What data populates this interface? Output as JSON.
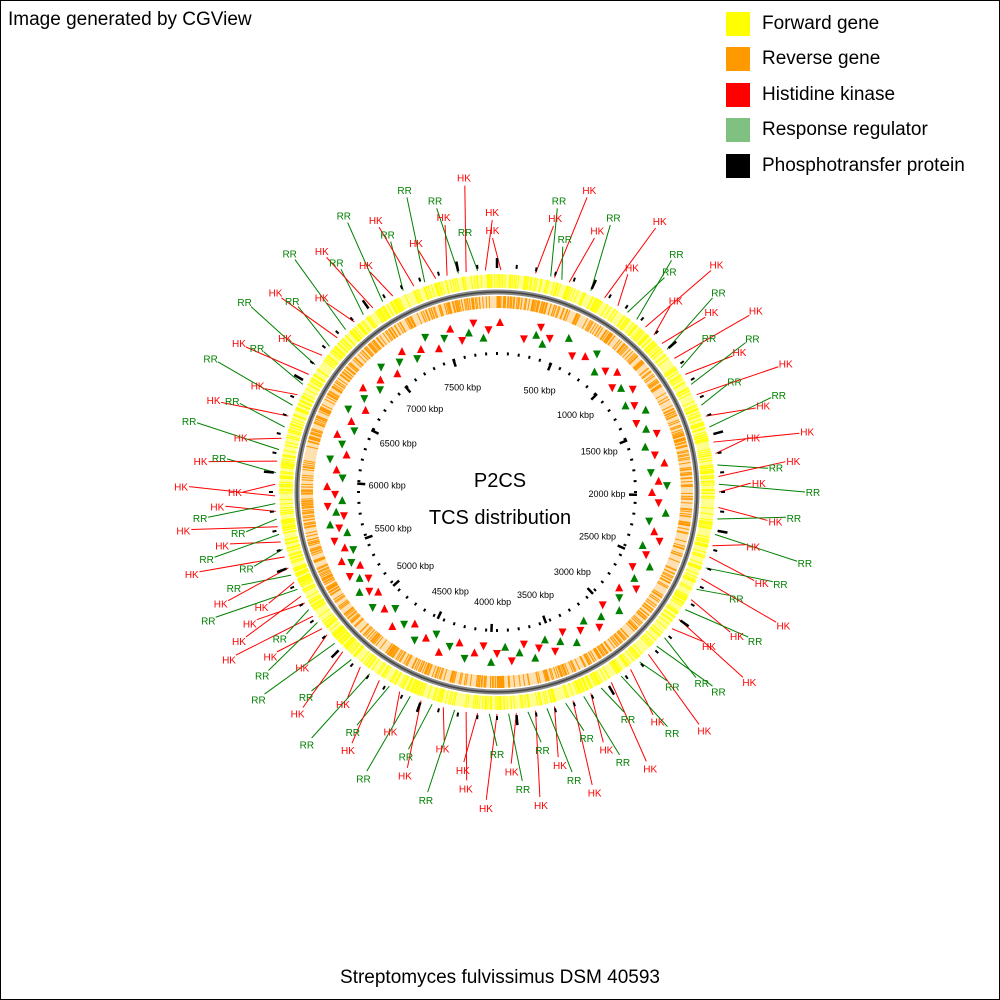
{
  "credit": "Image generated by CGView",
  "legend": [
    {
      "label": "Forward gene",
      "color": "#ffff00"
    },
    {
      "label": "Reverse gene",
      "color": "#ff9900"
    },
    {
      "label": "Histidine kinase",
      "color": "#ff0000"
    },
    {
      "label": "Response regulator",
      "color": "#80c080"
    },
    {
      "label": "Phosphotransfer protein",
      "color": "#000000"
    }
  ],
  "center_title": {
    "line1": "P2CS",
    "line2": "TCS distribution"
  },
  "organism": "Streptomyces fulvissimus DSM 40593",
  "label_colors": {
    "HK": "#ff0000",
    "RR": "#008000"
  },
  "ruler": {
    "genome_kbp": 7900,
    "tick_labels": [
      "500 kbp",
      "1000 kbp",
      "1500 kbp",
      "2000 kbp",
      "2500 kbp",
      "3000 kbp",
      "3500 kbp",
      "4000 kbp",
      "4500 kbp",
      "5000 kbp",
      "5500 kbp",
      "6000 kbp",
      "6500 kbp",
      "7000 kbp",
      "7500 kbp"
    ]
  },
  "features": [
    {
      "t": "HK",
      "a": 1
    },
    {
      "t": "HK",
      "a": 10
    },
    {
      "t": "RR",
      "a": 14
    },
    {
      "t": "HK",
      "a": 15
    },
    {
      "t": "RR",
      "a": 17
    },
    {
      "t": "HK",
      "a": 19
    },
    {
      "t": "RR",
      "a": 25
    },
    {
      "t": "HK",
      "a": 29
    },
    {
      "t": "HK",
      "a": 33
    },
    {
      "t": "RR",
      "a": 36
    },
    {
      "t": "RR",
      "a": 39
    },
    {
      "t": "HK",
      "a": 42
    },
    {
      "t": "HK",
      "a": 45
    },
    {
      "t": "HK",
      "a": 48
    },
    {
      "t": "RR",
      "a": 50
    },
    {
      "t": "HK",
      "a": 53
    },
    {
      "t": "RR",
      "a": 56
    },
    {
      "t": "HK",
      "a": 58
    },
    {
      "t": "RR",
      "a": 61
    },
    {
      "t": "HK",
      "a": 64
    },
    {
      "t": "RR",
      "a": 67
    },
    {
      "t": "HK",
      "a": 70
    },
    {
      "t": "RR",
      "a": 73
    },
    {
      "t": "HK",
      "a": 77
    },
    {
      "t": "HK",
      "a": 80
    },
    {
      "t": "RR",
      "a": 83
    },
    {
      "t": "HK",
      "a": 86
    },
    {
      "t": "RR",
      "a": 88
    },
    {
      "t": "HK",
      "a": 90
    },
    {
      "t": "HK",
      "a": 94
    },
    {
      "t": "RR",
      "a": 97
    },
    {
      "t": "RR",
      "a": 101
    },
    {
      "t": "HK",
      "a": 104
    },
    {
      "t": "HK",
      "a": 107
    },
    {
      "t": "RR",
      "a": 110
    },
    {
      "t": "HK",
      "a": 113
    },
    {
      "t": "RR",
      "a": 116
    },
    {
      "t": "HK",
      "a": 119
    },
    {
      "t": "RR",
      "a": 122
    },
    {
      "t": "HK",
      "a": 125
    },
    {
      "t": "HK",
      "a": 128
    },
    {
      "t": "RR",
      "a": 131
    },
    {
      "t": "RR",
      "a": 134
    },
    {
      "t": "HK",
      "a": 137
    },
    {
      "t": "RR",
      "a": 140
    },
    {
      "t": "HK",
      "a": 143
    },
    {
      "t": "RR",
      "a": 146
    },
    {
      "t": "HK",
      "a": 149
    },
    {
      "t": "RR",
      "a": 152
    },
    {
      "t": "HK",
      "a": 155
    },
    {
      "t": "RR",
      "a": 157
    },
    {
      "t": "HK",
      "a": 160
    },
    {
      "t": "RR",
      "a": 162
    },
    {
      "t": "HK",
      "a": 165
    },
    {
      "t": "RR",
      "a": 167
    },
    {
      "t": "HK",
      "a": 170
    },
    {
      "t": "RR",
      "a": 172
    },
    {
      "t": "HK",
      "a": 175
    },
    {
      "t": "RR",
      "a": 177
    },
    {
      "t": "HK",
      "a": 180
    },
    {
      "t": "RR",
      "a": 182
    },
    {
      "t": "HK",
      "a": 185
    },
    {
      "t": "HK",
      "a": 188
    },
    {
      "t": "RR",
      "a": 191
    },
    {
      "t": "HK",
      "a": 194
    },
    {
      "t": "RR",
      "a": 197
    },
    {
      "t": "HK",
      "a": 200
    },
    {
      "t": "RR",
      "a": 203
    },
    {
      "t": "HK",
      "a": 206
    },
    {
      "t": "RR",
      "a": 209
    },
    {
      "t": "HK",
      "a": 212
    },
    {
      "t": "RR",
      "a": 215
    },
    {
      "t": "HK",
      "a": 218
    },
    {
      "t": "RR",
      "a": 221
    },
    {
      "t": "HK",
      "a": 224
    },
    {
      "t": "RR",
      "a": 227
    },
    {
      "t": "HK",
      "a": 230
    },
    {
      "t": "HK",
      "a": 232
    },
    {
      "t": "RR",
      "a": 234
    },
    {
      "t": "HK",
      "a": 236
    },
    {
      "t": "RR",
      "a": 238
    },
    {
      "t": "HK",
      "a": 240
    },
    {
      "t": "HK",
      "a": 242
    },
    {
      "t": "RR",
      "a": 244
    },
    {
      "t": "HK",
      "a": 246
    },
    {
      "t": "RR",
      "a": 248
    },
    {
      "t": "HK",
      "a": 250
    },
    {
      "t": "HK",
      "a": 253
    },
    {
      "t": "RR",
      "a": 255
    },
    {
      "t": "HK",
      "a": 257
    },
    {
      "t": "RR",
      "a": 259
    },
    {
      "t": "HK",
      "a": 261
    },
    {
      "t": "RR",
      "a": 263
    },
    {
      "t": "HK",
      "a": 265
    },
    {
      "t": "RR",
      "a": 267
    },
    {
      "t": "HK",
      "a": 269
    },
    {
      "t": "HK",
      "a": 272
    },
    {
      "t": "RR",
      "a": 275
    },
    {
      "t": "HK",
      "a": 278
    },
    {
      "t": "RR",
      "a": 281
    },
    {
      "t": "HK",
      "a": 284
    },
    {
      "t": "RR",
      "a": 287
    },
    {
      "t": "HK",
      "a": 290
    },
    {
      "t": "RR",
      "a": 293
    },
    {
      "t": "HK",
      "a": 296
    },
    {
      "t": "RR",
      "a": 299
    },
    {
      "t": "HK",
      "a": 302
    },
    {
      "t": "RR",
      "a": 305
    },
    {
      "t": "HK",
      "a": 308
    },
    {
      "t": "RR",
      "a": 311
    },
    {
      "t": "HK",
      "a": 314
    },
    {
      "t": "RR",
      "a": 317
    },
    {
      "t": "HK",
      "a": 320
    },
    {
      "t": "RR",
      "a": 323
    },
    {
      "t": "HK",
      "a": 326
    },
    {
      "t": "RR",
      "a": 329
    },
    {
      "t": "HK",
      "a": 332
    },
    {
      "t": "RR",
      "a": 335
    },
    {
      "t": "HK",
      "a": 338
    },
    {
      "t": "RR",
      "a": 341
    },
    {
      "t": "HK",
      "a": 344
    },
    {
      "t": "HK",
      "a": 347
    },
    {
      "t": "RR",
      "a": 350
    },
    {
      "t": "HK",
      "a": 352
    },
    {
      "t": "RR",
      "a": 355
    },
    {
      "t": "HK",
      "a": 357
    }
  ]
}
